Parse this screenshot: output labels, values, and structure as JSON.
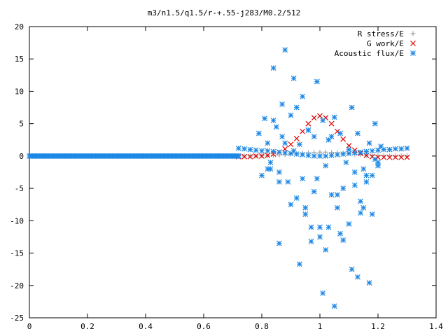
{
  "chart_data": {
    "type": "scatter",
    "title": "m3/n1.5/q1.5/r-+.55-j283/M0.2/512",
    "xlabel": "",
    "ylabel": "",
    "xlim": [
      0,
      1.4
    ],
    "ylim": [
      -25,
      20
    ],
    "x_ticks": [
      0,
      0.2,
      0.4,
      0.6,
      0.8,
      1,
      1.2,
      1.4
    ],
    "x_tick_labels": [
      "0",
      "0.2",
      "0.4",
      "0.6",
      "0.8",
      "1",
      "1.2",
      "1.4"
    ],
    "y_ticks": [
      -25,
      -20,
      -15,
      -10,
      -5,
      0,
      5,
      10,
      15,
      20
    ],
    "y_tick_labels": [
      "-25",
      "-20",
      "-15",
      "-10",
      "-5",
      "0",
      "5",
      "10",
      "15",
      "20"
    ],
    "grid": false,
    "legend_position": "top-right",
    "series": [
      {
        "name": "R stress/E",
        "color": "#a0a0a0",
        "marker": "plus",
        "x": [
          0.72,
          0.74,
          0.76,
          0.78,
          0.8,
          0.82,
          0.84,
          0.86,
          0.88,
          0.9,
          0.92,
          0.94,
          0.96,
          0.98,
          1.0,
          1.02,
          1.04,
          1.06,
          1.08,
          1.1,
          1.12,
          1.14,
          1.16,
          1.18,
          1.2,
          1.22,
          1.24,
          1.26,
          1.28,
          1.3
        ],
        "y": [
          0.0,
          0.0,
          0.0,
          0.0,
          0.05,
          0.05,
          0.1,
          0.15,
          0.2,
          0.3,
          0.35,
          0.45,
          0.5,
          0.55,
          0.6,
          0.6,
          0.55,
          0.5,
          0.45,
          0.35,
          0.3,
          0.25,
          0.15,
          0.1,
          0.05,
          0.05,
          0.0,
          0.0,
          0.0,
          0.0
        ]
      },
      {
        "name": "G work/E",
        "color": "#e00000",
        "marker": "cross",
        "x": [
          0.72,
          0.74,
          0.76,
          0.78,
          0.8,
          0.82,
          0.84,
          0.86,
          0.88,
          0.9,
          0.92,
          0.94,
          0.96,
          0.98,
          1.0,
          1.02,
          1.04,
          1.06,
          1.08,
          1.1,
          1.12,
          1.14,
          1.16,
          1.18,
          1.2,
          1.22,
          1.24,
          1.26,
          1.28,
          1.3
        ],
        "y": [
          -0.1,
          -0.1,
          -0.1,
          0.0,
          0.0,
          0.1,
          0.3,
          0.6,
          1.1,
          1.8,
          2.7,
          3.8,
          5.0,
          5.9,
          6.2,
          5.9,
          5.0,
          3.8,
          2.6,
          1.6,
          0.9,
          0.4,
          0.1,
          -0.1,
          -0.2,
          -0.2,
          -0.2,
          -0.2,
          -0.2,
          -0.2
        ]
      },
      {
        "name": "Acoustic flux/E",
        "color": "#1e88e5",
        "marker": "star",
        "flat_x_range": [
          0.0,
          0.72
        ],
        "flat_y": 0.0,
        "x": [
          0.72,
          0.74,
          0.76,
          0.78,
          0.8,
          0.82,
          0.84,
          0.86,
          0.88,
          0.9,
          0.92,
          0.94,
          0.96,
          0.98,
          1.0,
          1.02,
          1.04,
          1.06,
          1.08,
          1.1,
          1.12,
          1.14,
          1.16,
          1.18,
          1.2,
          1.22,
          1.24,
          1.26,
          1.28,
          1.3,
          0.79,
          0.81,
          0.82,
          0.83,
          0.84,
          0.85,
          0.86,
          0.87,
          0.88,
          0.89,
          0.9,
          0.91,
          0.92,
          0.93,
          0.94,
          0.95,
          0.96,
          0.97,
          0.98,
          0.99,
          1.0,
          1.01,
          1.02,
          1.03,
          1.04,
          1.05,
          1.06,
          1.07,
          1.08,
          1.09,
          1.1,
          1.11,
          1.12,
          1.13,
          1.14,
          1.15,
          1.16,
          1.17,
          1.18,
          1.19,
          1.2,
          1.21,
          0.8,
          0.82,
          0.84,
          0.86,
          0.88,
          0.9,
          0.92,
          0.94,
          0.96,
          0.98,
          1.0,
          1.02,
          1.04,
          1.06,
          1.08,
          1.1,
          1.12,
          1.14,
          1.16,
          1.18,
          1.2,
          0.83,
          0.87,
          0.91,
          0.95,
          0.99,
          1.03,
          1.07,
          1.11,
          1.15,
          1.19,
          0.86,
          0.93,
          0.97,
          1.01,
          1.05,
          1.13,
          1.17
        ],
        "y": [
          1.2,
          1.1,
          1.0,
          0.9,
          0.8,
          0.8,
          0.7,
          0.6,
          0.5,
          0.4,
          0.3,
          0.2,
          0.1,
          0.0,
          0.0,
          0.0,
          0.1,
          0.2,
          0.3,
          0.4,
          0.5,
          0.6,
          0.7,
          0.8,
          0.9,
          1.0,
          1.0,
          1.1,
          1.1,
          1.2,
          3.5,
          5.8,
          2.0,
          -1.0,
          13.6,
          4.5,
          -2.5,
          8.0,
          16.4,
          -4.0,
          6.3,
          12.0,
          -6.5,
          1.8,
          9.2,
          -9.0,
          4.0,
          -11.0,
          3.0,
          -3.5,
          -12.5,
          5.5,
          -14.5,
          2.5,
          -6.0,
          6.0,
          -8.0,
          3.5,
          -5.0,
          -1.0,
          -10.5,
          7.5,
          -4.5,
          3.5,
          -7.0,
          -2.0,
          -3.0,
          2.0,
          -9.0,
          5.0,
          -1.5,
          1.5,
          -3.0,
          -2.0,
          5.5,
          -4.0,
          2.0,
          -7.5,
          7.5,
          -3.5,
          4.0,
          -5.5,
          -11.0,
          -1.5,
          3.0,
          -6.0,
          -13.0,
          1.0,
          -2.5,
          -8.8,
          -4.0,
          -3.0,
          -1.0,
          -2.0,
          3.0,
          0.8,
          -8.0,
          11.5,
          -11.0,
          -12.0,
          -17.5,
          -8.0,
          -0.5,
          -13.5,
          -16.7,
          -13.2,
          -21.2,
          -23.2,
          -18.7,
          -19.6
        ]
      }
    ]
  }
}
